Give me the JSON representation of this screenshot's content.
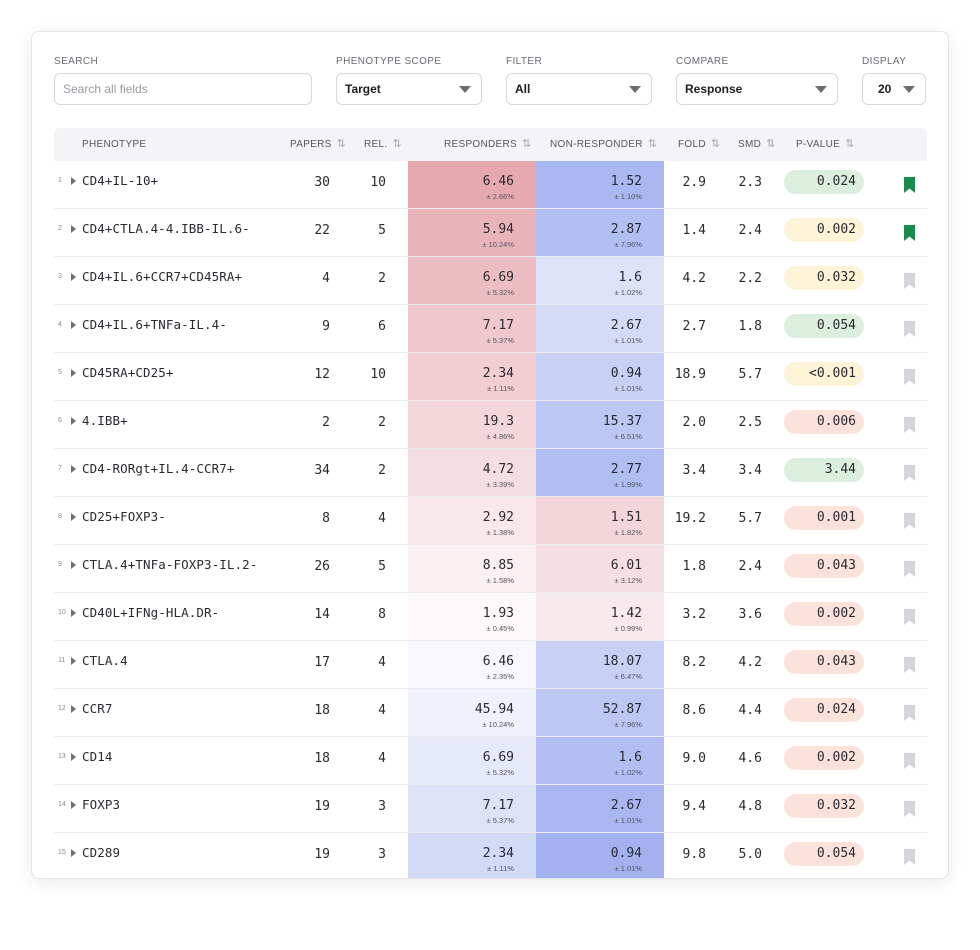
{
  "filters": {
    "search": {
      "label": "SEARCH",
      "placeholder": "Search all fields"
    },
    "scope": {
      "label": "PHENOTYPE SCOPE",
      "value": "Target"
    },
    "filter": {
      "label": "FILTER",
      "value": "All"
    },
    "compare": {
      "label": "COMPARE",
      "value": "Response"
    },
    "display": {
      "label": "DISPLAY",
      "value": "20"
    }
  },
  "columns": {
    "phenotype": "PHENOTYPE",
    "papers": "PAPERS",
    "rel": "REL.",
    "responders": "RESPONDERS",
    "non_responder": "NON-RESPONDER",
    "fold": "FOLD",
    "smd": "SMD",
    "pvalue": "P-VALUE",
    "sort_icon": "⇅"
  },
  "colors": {
    "bookmark_active": "#1a8a4a",
    "bookmark_inactive": "#d4d4da",
    "pill_green": "#dceedd",
    "pill_yellow": "#fdf3d6",
    "pill_red": "#fbe3dc"
  },
  "rows": [
    {
      "idx": "1",
      "name": "CD4+IL-10+",
      "papers": "30",
      "rel": "10",
      "resp": "6.46",
      "resp_sd": "± 2.66%",
      "non": "1.52",
      "non_sd": "± 1.10%",
      "fold": "2.9",
      "smd": "2.3",
      "p": "0.024",
      "p_tone": "green",
      "bookmarked": true,
      "resp_color": "#e6a9b0",
      "non_color": "#a9b8f0"
    },
    {
      "idx": "2",
      "name": "CD4+CTLA.4-4.IBB-IL.6-",
      "papers": "22",
      "rel": "5",
      "resp": "5.94",
      "resp_sd": "± 10.24%",
      "non": "2.87",
      "non_sd": "± 7.96%",
      "fold": "1.4",
      "smd": "2.4",
      "p": "0.002",
      "p_tone": "yellow",
      "bookmarked": true,
      "resp_color": "#e9b3ba",
      "non_color": "#b1bff2"
    },
    {
      "idx": "3",
      "name": "CD4+IL.6+CCR7+CD45RA+",
      "papers": "4",
      "rel": "2",
      "resp": "6.69",
      "resp_sd": "± 5.32%",
      "non": "1.6",
      "non_sd": "± 1.02%",
      "fold": "4.2",
      "smd": "2.2",
      "p": "0.032",
      "p_tone": "yellow",
      "bookmarked": false,
      "resp_color": "#ecbec4",
      "non_color": "#dde2f8"
    },
    {
      "idx": "4",
      "name": "CD4+IL.6+TNFa-IL.4-",
      "papers": "9",
      "rel": "6",
      "resp": "7.17",
      "resp_sd": "± 5.37%",
      "non": "2.67",
      "non_sd": "± 1.01%",
      "fold": "2.7",
      "smd": "1.8",
      "p": "0.054",
      "p_tone": "green",
      "bookmarked": false,
      "resp_color": "#efc8cd",
      "non_color": "#d5dbf6"
    },
    {
      "idx": "5",
      "name": "CD45RA+CD25+",
      "papers": "12",
      "rel": "10",
      "resp": "2.34",
      "resp_sd": "± 1.11%",
      "non": "0.94",
      "non_sd": "± 1.01%",
      "fold": "18.9",
      "smd": "5.7",
      "p": "<0.001",
      "p_tone": "yellow",
      "bookmarked": false,
      "resp_color": "#f0ced2",
      "non_color": "#c8d1f4"
    },
    {
      "idx": "6",
      "name": "4.IBB+",
      "papers": "2",
      "rel": "2",
      "resp": "19.3",
      "resp_sd": "± 4.86%",
      "non": "15.37",
      "non_sd": "± 6.51%",
      "fold": "2.0",
      "smd": "2.5",
      "p": "0.006",
      "p_tone": "red",
      "bookmarked": false,
      "resp_color": "#f3d7da",
      "non_color": "#bcc7f3"
    },
    {
      "idx": "7",
      "name": "CD4-RORgt+IL.4-CCR7+",
      "papers": "34",
      "rel": "2",
      "resp": "4.72",
      "resp_sd": "± 3.39%",
      "non": "2.77",
      "non_sd": "± 1.99%",
      "fold": "3.4",
      "smd": "3.4",
      "p": "3.44",
      "p_tone": "green",
      "bookmarked": false,
      "resp_color": "#f5dee1",
      "non_color": "#b1bef2"
    },
    {
      "idx": "8",
      "name": "CD25+FOXP3-",
      "papers": "8",
      "rel": "4",
      "resp": "2.92",
      "resp_sd": "± 1.38%",
      "non": "1.51",
      "non_sd": "± 1.82%",
      "fold": "19.2",
      "smd": "5.7",
      "p": "0.001",
      "p_tone": "red",
      "bookmarked": false,
      "resp_color": "#f8e8ea",
      "non_color": "#f3d6da"
    },
    {
      "idx": "9",
      "name": "CTLA.4+TNFa-FOXP3-IL.2-",
      "papers": "26",
      "rel": "5",
      "resp": "8.85",
      "resp_sd": "± 1.58%",
      "non": "6.01",
      "non_sd": "± 3.12%",
      "fold": "1.8",
      "smd": "2.4",
      "p": "0.043",
      "p_tone": "red",
      "bookmarked": false,
      "resp_color": "#fbf0f2",
      "non_color": "#f5dfe2"
    },
    {
      "idx": "10",
      "name": "CD40L+IFNg-HLA.DR-",
      "papers": "14",
      "rel": "8",
      "resp": "1.93",
      "resp_sd": "± 0.45%",
      "non": "1.42",
      "non_sd": "± 0.99%",
      "fold": "3.2",
      "smd": "3.6",
      "p": "0.002",
      "p_tone": "red",
      "bookmarked": false,
      "resp_color": "#fdf9fa",
      "non_color": "#f8eaec"
    },
    {
      "idx": "11",
      "name": "CTLA.4",
      "papers": "17",
      "rel": "4",
      "resp": "6.46",
      "resp_sd": "± 2.35%",
      "non": "18.07",
      "non_sd": "± 6.47%",
      "fold": "8.2",
      "smd": "4.2",
      "p": "0.043",
      "p_tone": "red",
      "bookmarked": false,
      "resp_color": "#f7f7fd",
      "non_color": "#c8d0f4"
    },
    {
      "idx": "12",
      "name": "CCR7",
      "papers": "18",
      "rel": "4",
      "resp": "45.94",
      "resp_sd": "± 10.24%",
      "non": "52.87",
      "non_sd": "± 7.96%",
      "fold": "8.6",
      "smd": "4.4",
      "p": "0.024",
      "p_tone": "red",
      "bookmarked": false,
      "resp_color": "#eff1fc",
      "non_color": "#bcc7f3"
    },
    {
      "idx": "13",
      "name": "CD14",
      "papers": "18",
      "rel": "4",
      "resp": "6.69",
      "resp_sd": "± 5.32%",
      "non": "1.6",
      "non_sd": "± 1.02%",
      "fold": "9.0",
      "smd": "4.6",
      "p": "0.002",
      "p_tone": "red",
      "bookmarked": false,
      "resp_color": "#e6e9fa",
      "non_color": "#b3bff2"
    },
    {
      "idx": "14",
      "name": "FOXP3",
      "papers": "19",
      "rel": "3",
      "resp": "7.17",
      "resp_sd": "± 5.37%",
      "non": "2.67",
      "non_sd": "± 1.01%",
      "fold": "9.4",
      "smd": "4.8",
      "p": "0.032",
      "p_tone": "red",
      "bookmarked": false,
      "resp_color": "#dde2f8",
      "non_color": "#a9b6f0"
    },
    {
      "idx": "15",
      "name": "CD289",
      "papers": "19",
      "rel": "3",
      "resp": "2.34",
      "resp_sd": "± 1.11%",
      "non": "0.94",
      "non_sd": "± 1.01%",
      "fold": "9.8",
      "smd": "5.0",
      "p": "0.054",
      "p_tone": "red",
      "bookmarked": false,
      "resp_color": "#d3daf6",
      "non_color": "#a3b1ee"
    }
  ]
}
